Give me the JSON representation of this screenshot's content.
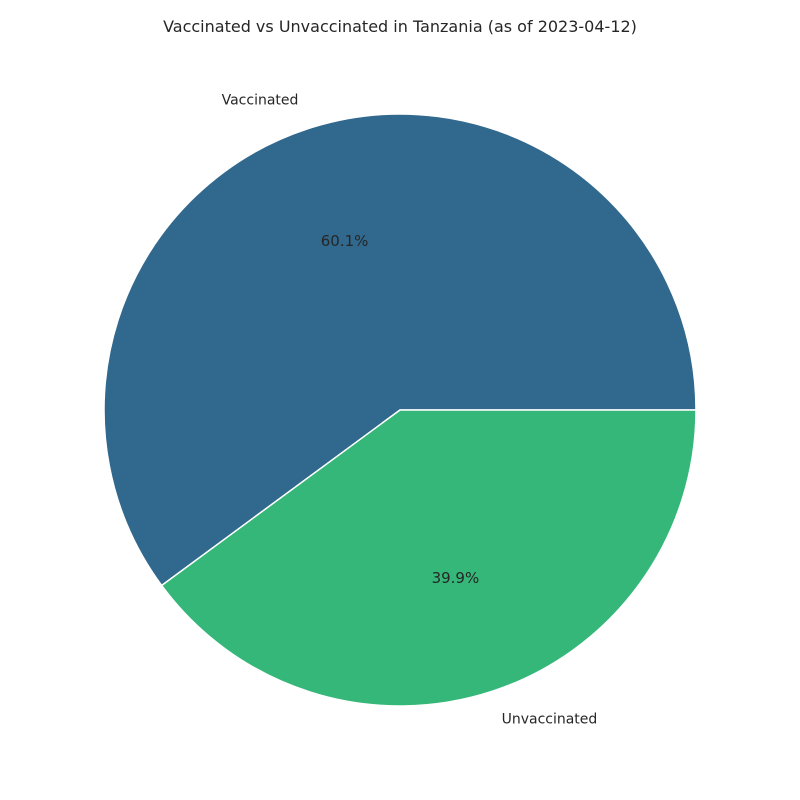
{
  "chart_data": {
    "type": "pie",
    "title": "Vaccinated vs Unvaccinated in Tanzania (as of 2023-04-12)",
    "slices": [
      {
        "label": "Vaccinated",
        "value": 60.1,
        "pct_label": "60.1%",
        "color": "#31688e"
      },
      {
        "label": "Unvaccinated",
        "value": 39.9,
        "pct_label": "39.9%",
        "color": "#35b779"
      }
    ],
    "start_angle": 0,
    "direction": "counterclockwise",
    "edge_color": "#ffffff"
  }
}
